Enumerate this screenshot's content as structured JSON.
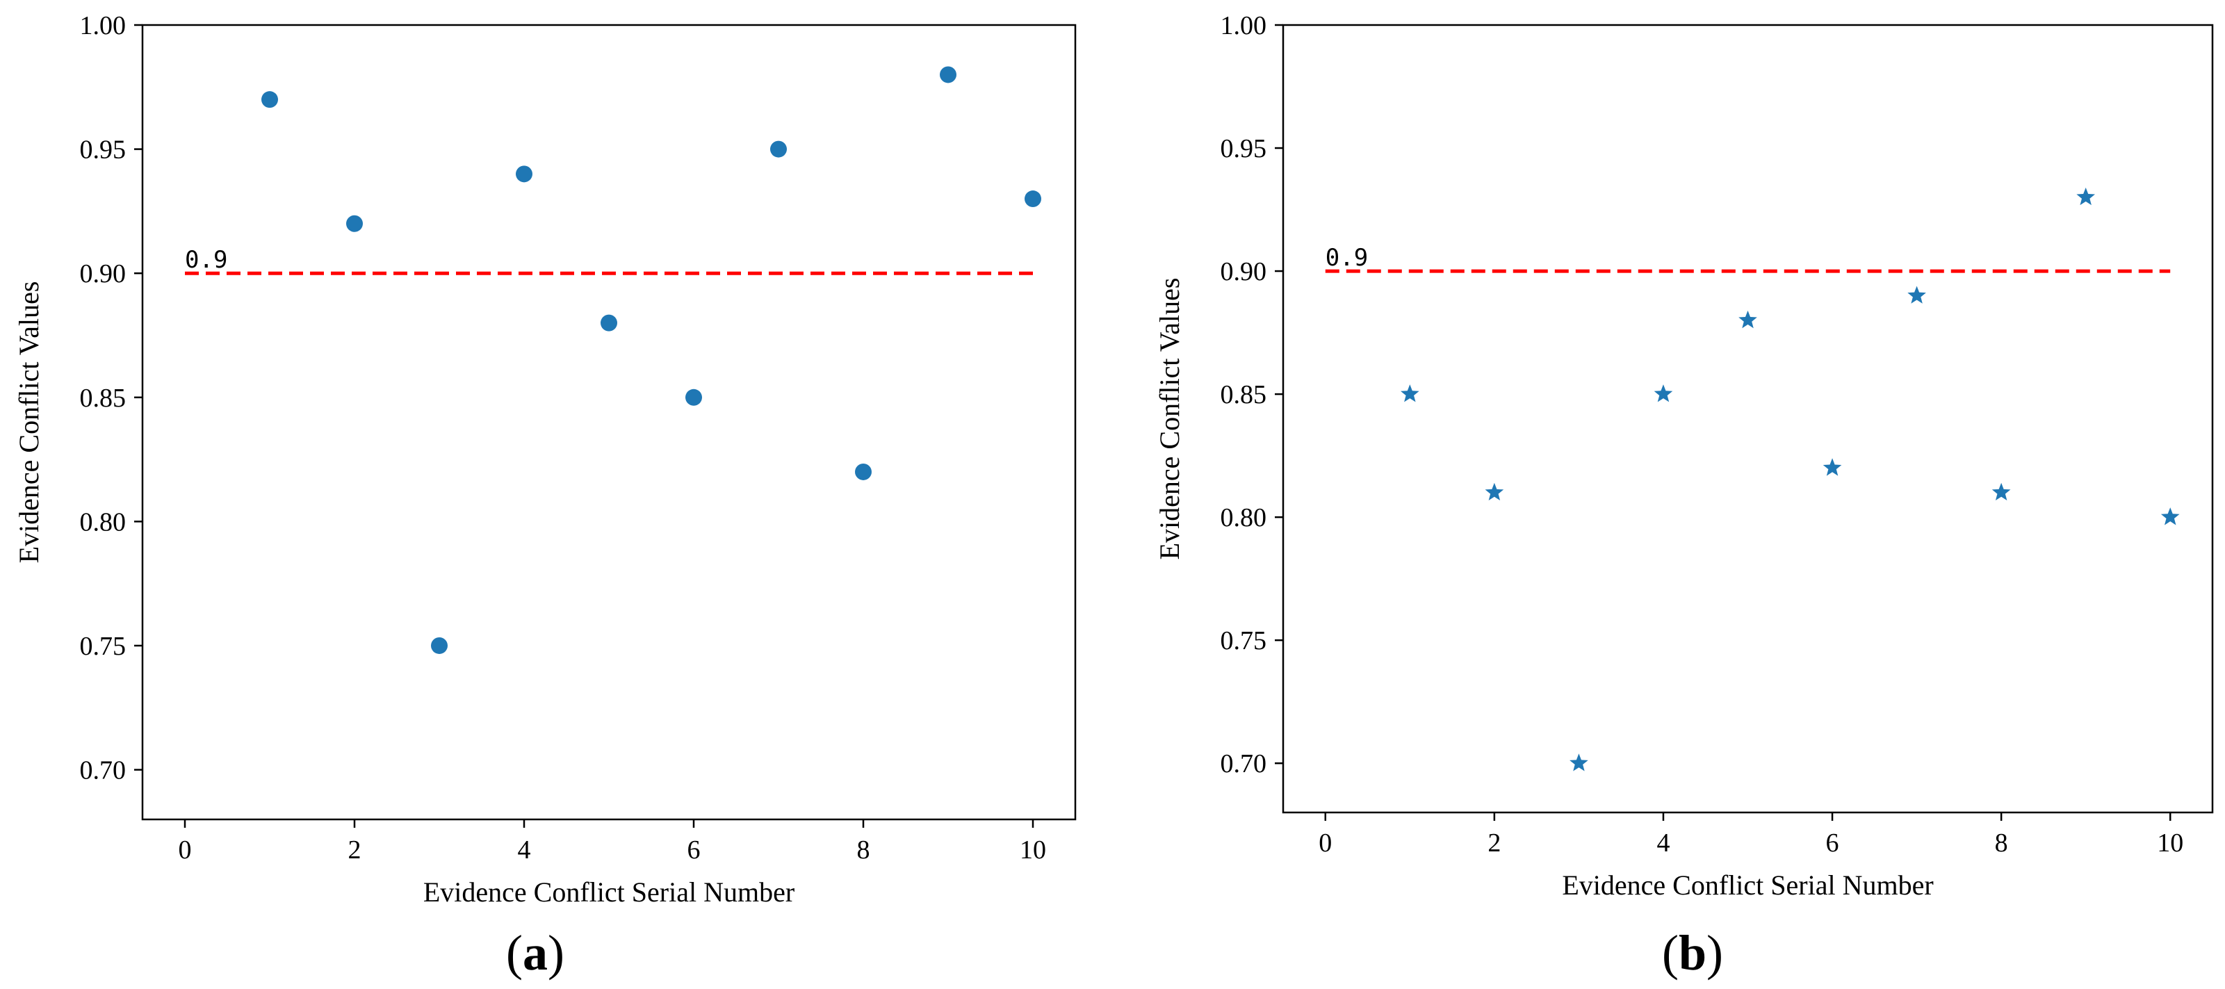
{
  "chart_data": [
    {
      "type": "scatter",
      "panel_label": "a",
      "marker": "circle",
      "color": "#1f77b4",
      "xlabel": "Evidence Conflict Serial Number",
      "ylabel": "Evidence Conflict Values",
      "xlim": [
        -0.5,
        10.5
      ],
      "ylim": [
        0.68,
        1.0
      ],
      "xticks": [
        "0",
        "2",
        "4",
        "6",
        "8",
        "10"
      ],
      "yticks": [
        "0.70",
        "0.75",
        "0.80",
        "0.85",
        "0.90",
        "0.95",
        "1.00"
      ],
      "x": [
        1,
        2,
        3,
        4,
        5,
        6,
        7,
        8,
        9,
        10
      ],
      "y": [
        0.97,
        0.92,
        0.75,
        0.94,
        0.88,
        0.85,
        0.95,
        0.82,
        0.98,
        0.93
      ],
      "threshold": {
        "value": 0.9,
        "from_x": 0,
        "to_x": 10,
        "label": "0.9",
        "color": "#ff0000"
      }
    },
    {
      "type": "scatter",
      "panel_label": "b",
      "marker": "star",
      "color": "#1f77b4",
      "xlabel": "Evidence Conflict Serial Number",
      "ylabel": "Evidence Conflict Values",
      "xlim": [
        -0.5,
        10.5
      ],
      "ylim": [
        0.68,
        1.0
      ],
      "xticks": [
        "0",
        "2",
        "4",
        "6",
        "8",
        "10"
      ],
      "yticks": [
        "0.70",
        "0.75",
        "0.80",
        "0.85",
        "0.90",
        "0.95",
        "1.00"
      ],
      "x": [
        1,
        2,
        3,
        4,
        5,
        6,
        7,
        8,
        9,
        10
      ],
      "y": [
        0.85,
        0.81,
        0.7,
        0.85,
        0.88,
        0.82,
        0.89,
        0.81,
        0.93,
        0.8
      ],
      "threshold": {
        "value": 0.9,
        "from_x": 0,
        "to_x": 10,
        "label": "0.9",
        "color": "#ff0000"
      }
    }
  ]
}
